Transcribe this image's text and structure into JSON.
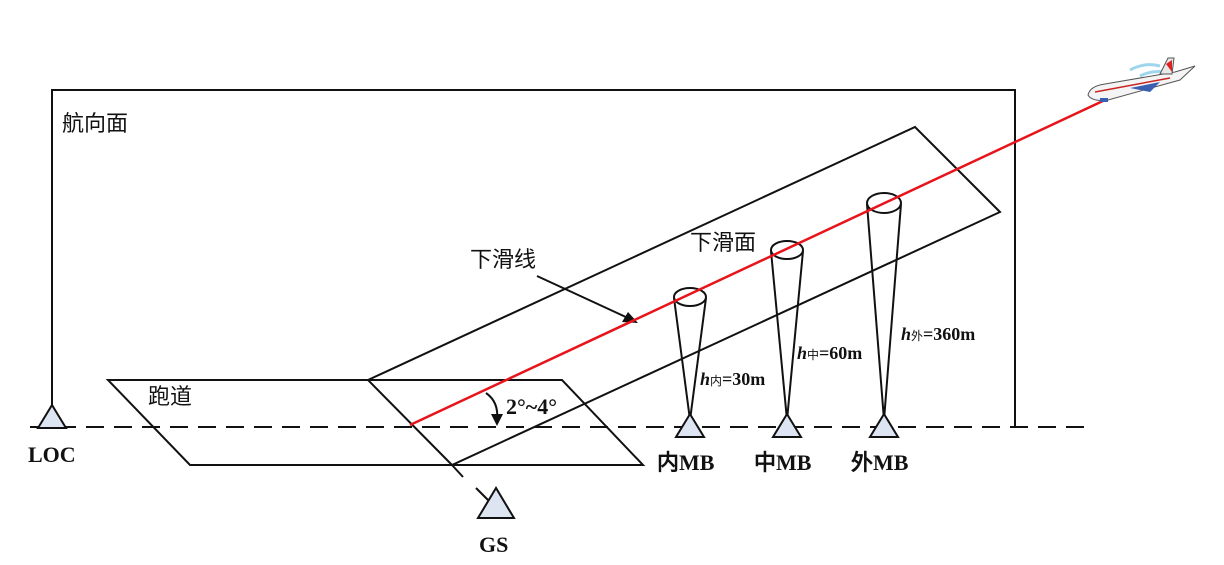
{
  "labels": {
    "heading_plane": "航向面",
    "glide_line": "下滑线",
    "glide_plane": "下滑面",
    "runway": "跑道",
    "angle": "2°~4°",
    "loc": "LOC",
    "gs": "GS",
    "inner_mb": "内MB",
    "middle_mb": "中MB",
    "outer_mb": "外MB"
  },
  "heights": {
    "inner": {
      "var": "h",
      "sub": "内",
      "value": "=30m"
    },
    "middle": {
      "var": "h",
      "sub": "中",
      "value": "=60m"
    },
    "outer": {
      "var": "h",
      "sub": "外",
      "value": "=360m"
    }
  },
  "colors": {
    "line": "#111111",
    "glide_path": "#e8141c",
    "triangle_fill": "#dde4f2"
  },
  "icons": {
    "aircraft": "airplane-icon",
    "beacon": "triangle-antenna-icon"
  }
}
